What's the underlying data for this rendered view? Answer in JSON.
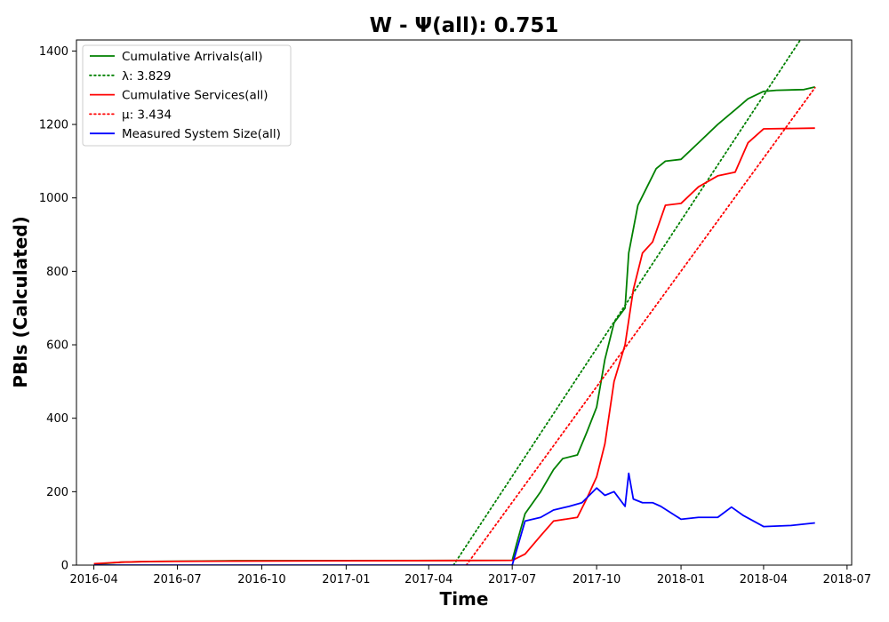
{
  "chart_data": {
    "type": "line",
    "title": "W -  Ψ(all): 0.751",
    "xlabel": "Time",
    "ylabel": "PBIs (Calculated)",
    "xlim": [
      "2016-03-13",
      "2018-07-06"
    ],
    "ylim": [
      0,
      1430
    ],
    "x_ticks": [
      "2016-04",
      "2016-07",
      "2016-10",
      "2017-01",
      "2017-04",
      "2017-07",
      "2017-10",
      "2018-01",
      "2018-04",
      "2018-07"
    ],
    "y_ticks": [
      0,
      200,
      400,
      600,
      800,
      1000,
      1200,
      1400
    ],
    "grid": false,
    "legend_position": "top-left",
    "series": [
      {
        "name": "Cumulative Arrivals(all)",
        "color": "#008000",
        "style": "solid",
        "points": [
          [
            "2016-04-01",
            2
          ],
          [
            "2016-05-01",
            8
          ],
          [
            "2016-06-01",
            10
          ],
          [
            "2016-09-01",
            12
          ],
          [
            "2017-07-01",
            13
          ],
          [
            "2017-07-06",
            60
          ],
          [
            "2017-07-15",
            140
          ],
          [
            "2017-08-01",
            200
          ],
          [
            "2017-08-15",
            260
          ],
          [
            "2017-08-25",
            290
          ],
          [
            "2017-09-10",
            300
          ],
          [
            "2017-09-20",
            360
          ],
          [
            "2017-10-01",
            430
          ],
          [
            "2017-10-10",
            560
          ],
          [
            "2017-10-20",
            660
          ],
          [
            "2017-11-01",
            700
          ],
          [
            "2017-11-05",
            850
          ],
          [
            "2017-11-15",
            980
          ],
          [
            "2017-11-25",
            1030
          ],
          [
            "2017-12-05",
            1080
          ],
          [
            "2017-12-15",
            1100
          ],
          [
            "2018-01-01",
            1105
          ],
          [
            "2018-01-20",
            1150
          ],
          [
            "2018-02-10",
            1200
          ],
          [
            "2018-03-01",
            1240
          ],
          [
            "2018-03-15",
            1270
          ],
          [
            "2018-04-01",
            1290
          ],
          [
            "2018-04-15",
            1293
          ],
          [
            "2018-05-15",
            1295
          ],
          [
            "2018-05-27",
            1302
          ]
        ]
      },
      {
        "name": "λ: 3.829",
        "color": "#008000",
        "style": "dotted",
        "points": [
          [
            "2017-04-28",
            0
          ],
          [
            "2018-05-11",
            1430
          ]
        ]
      },
      {
        "name": "Cumulative Services(all)",
        "color": "#ff0000",
        "style": "solid",
        "points": [
          [
            "2016-04-01",
            4
          ],
          [
            "2016-05-01",
            8
          ],
          [
            "2016-06-01",
            10
          ],
          [
            "2016-09-01",
            11
          ],
          [
            "2017-07-01",
            13
          ],
          [
            "2017-07-15",
            30
          ],
          [
            "2017-08-01",
            80
          ],
          [
            "2017-08-15",
            120
          ],
          [
            "2017-09-10",
            130
          ],
          [
            "2017-09-20",
            180
          ],
          [
            "2017-10-01",
            240
          ],
          [
            "2017-10-10",
            330
          ],
          [
            "2017-10-20",
            500
          ],
          [
            "2017-11-01",
            600
          ],
          [
            "2017-11-10",
            750
          ],
          [
            "2017-11-20",
            850
          ],
          [
            "2017-12-01",
            880
          ],
          [
            "2017-12-15",
            980
          ],
          [
            "2018-01-01",
            985
          ],
          [
            "2018-01-20",
            1030
          ],
          [
            "2018-02-10",
            1060
          ],
          [
            "2018-03-01",
            1070
          ],
          [
            "2018-03-15",
            1150
          ],
          [
            "2018-04-01",
            1188
          ],
          [
            "2018-05-27",
            1190
          ]
        ]
      },
      {
        "name": "μ: 3.434",
        "color": "#ff0000",
        "style": "dotted",
        "points": [
          [
            "2017-05-12",
            0
          ],
          [
            "2018-05-27",
            1300
          ]
        ]
      },
      {
        "name": "Measured System Size(all)",
        "color": "#0000ff",
        "style": "solid",
        "points": [
          [
            "2016-04-01",
            0
          ],
          [
            "2017-07-01",
            0
          ],
          [
            "2017-07-08",
            60
          ],
          [
            "2017-07-15",
            120
          ],
          [
            "2017-08-01",
            130
          ],
          [
            "2017-08-15",
            150
          ],
          [
            "2017-09-01",
            160
          ],
          [
            "2017-09-15",
            170
          ],
          [
            "2017-10-01",
            210
          ],
          [
            "2017-10-10",
            190
          ],
          [
            "2017-10-20",
            200
          ],
          [
            "2017-11-01",
            160
          ],
          [
            "2017-11-05",
            250
          ],
          [
            "2017-11-10",
            180
          ],
          [
            "2017-11-20",
            170
          ],
          [
            "2017-12-01",
            170
          ],
          [
            "2017-12-10",
            160
          ],
          [
            "2018-01-01",
            125
          ],
          [
            "2018-01-20",
            130
          ],
          [
            "2018-02-10",
            130
          ],
          [
            "2018-02-25",
            158
          ],
          [
            "2018-03-10",
            135
          ],
          [
            "2018-04-01",
            105
          ],
          [
            "2018-05-01",
            108
          ],
          [
            "2018-05-27",
            115
          ]
        ]
      }
    ]
  }
}
